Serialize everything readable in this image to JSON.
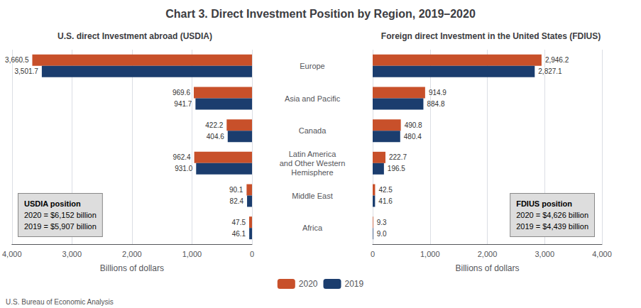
{
  "chart_data": [
    {
      "type": "bar",
      "orientation": "horizontal",
      "title": "Chart 3. Direct Investment Position by Region, 2019–2020",
      "subtitle": "U.S. direct Investment abroad (USDIA)",
      "categories": [
        "Europe",
        "Asia and Pacific",
        "Canada",
        "Latin America\nand Other Western\nHemisphere",
        "Middle East",
        "Africa"
      ],
      "series": [
        {
          "name": "2020",
          "color": "#C8502A",
          "values": [
            3660.5,
            969.6,
            422.2,
            962.4,
            90.1,
            47.5
          ],
          "value_labels": [
            "3,660.5",
            "969.6",
            "422.2",
            "962.4",
            "90.1",
            "47.5"
          ]
        },
        {
          "name": "2019",
          "color": "#1B3D6E",
          "values": [
            3501.7,
            941.7,
            404.6,
            931.0,
            82.4,
            46.1
          ],
          "value_labels": [
            "3,501.7",
            "941.7",
            "404.6",
            "931.0",
            "82.4",
            "46.1"
          ]
        }
      ],
      "xlim": [
        4000,
        0
      ],
      "xticks": [
        {
          "value": 4000,
          "label": "4,000"
        },
        {
          "value": 3000,
          "label": "3,000"
        },
        {
          "value": 2000,
          "label": "2,000"
        },
        {
          "value": 1000,
          "label": "1,000"
        },
        0
      ],
      "xlabel": "Billions of dollars",
      "grid": true,
      "data_labels": true,
      "legend": "bottom",
      "tick_labels": "x",
      "annotations": [
        "USDIA position",
        "2020 = $6,152 billion",
        "2019 = $5,907 billion"
      ],
      "source": "U.S. Bureau of Economic Analysis"
    },
    {
      "type": "bar",
      "orientation": "horizontal",
      "subtitle": "Foreign direct Investment in the United States (FDIUS)",
      "categories": [
        "Europe",
        "Asia and Pacific",
        "Canada",
        "Latin America\nand Other Western\nHemisphere",
        "Middle East",
        "Africa"
      ],
      "series": [
        {
          "name": "2020",
          "color": "#C8502A",
          "values": [
            2946.2,
            914.9,
            490.8,
            222.7,
            42.5,
            9.3
          ],
          "value_labels": [
            "2,946.2",
            "914.9",
            "490.8",
            "222.7",
            "42.5",
            "9.3"
          ]
        },
        {
          "name": "2019",
          "color": "#1B3D6E",
          "values": [
            2827.1,
            884.8,
            480.4,
            196.5,
            41.6,
            9.0
          ],
          "value_labels": [
            "2,827.1",
            "884.8",
            "480.4",
            "196.5",
            "41.6",
            "9.0"
          ]
        }
      ],
      "xlim": [
        0,
        4000
      ],
      "xticks": [
        0,
        {
          "value": 1000,
          "label": "1,000"
        },
        {
          "value": 2000,
          "label": "2,000"
        },
        {
          "value": 3000,
          "label": "3,000"
        },
        {
          "value": 4000,
          "label": "4,000"
        }
      ],
      "xlabel": "Billions of dollars",
      "grid": true,
      "data_labels": true,
      "legend": "bottom",
      "tick_labels": true,
      "annotations": [
        "FDIUS position",
        "2020 = $4,626 billion",
        "2019 = $4,439 billion"
      ]
    }
  ]
}
